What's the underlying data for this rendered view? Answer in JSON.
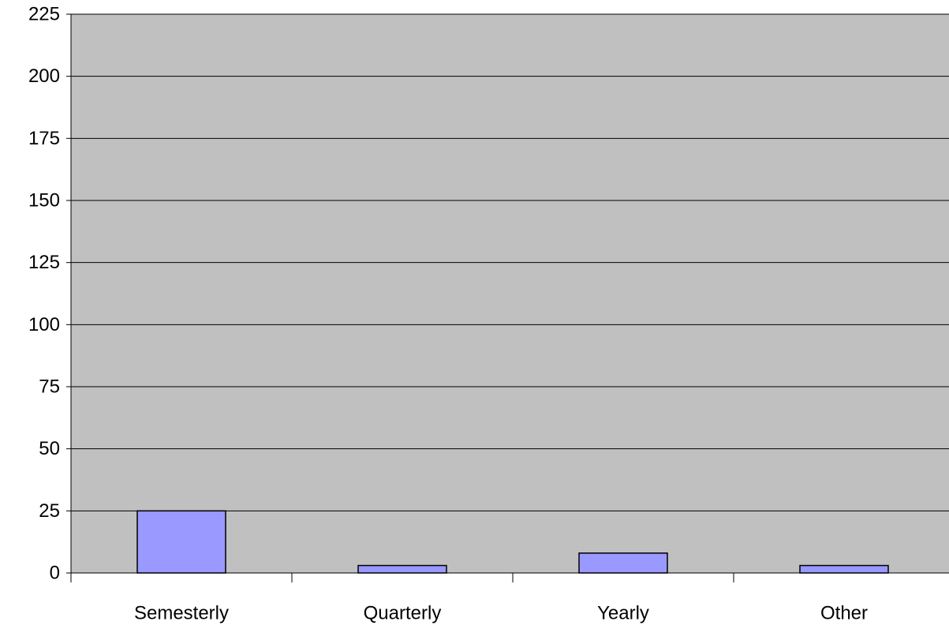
{
  "chart_data": {
    "type": "bar",
    "categories": [
      "Semesterly",
      "Quarterly",
      "Yearly",
      "Other"
    ],
    "values": [
      25,
      3,
      8,
      3
    ],
    "title": "",
    "xlabel": "",
    "ylabel": "",
    "ylim": [
      0,
      225
    ],
    "yticks": [
      "0",
      "25",
      "50",
      "75",
      "100",
      "125",
      "150",
      "175",
      "200",
      "225"
    ],
    "grid": true,
    "legend": "none",
    "colors": {
      "plot_background": "#c0c0c0",
      "bar_fill": "#9999ff",
      "bar_stroke": "#000000",
      "gridline": "#000000"
    }
  }
}
